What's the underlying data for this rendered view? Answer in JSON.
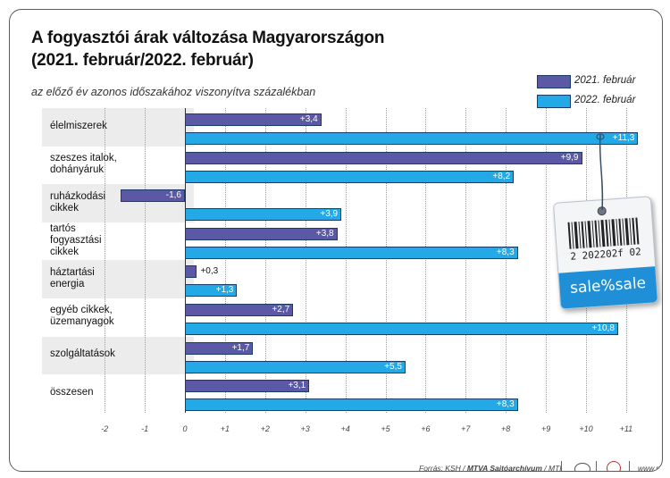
{
  "title_line1": "A fogyasztói árak változása Magyarországon",
  "title_line2": "(2021. február/2022. február)",
  "subtitle": "az előző év azonos időszakához viszonyítva százalékban",
  "colors": {
    "series_2021": "#5b58a5",
    "series_2022": "#23a9e6",
    "band": "#ececec"
  },
  "chart_data": {
    "type": "bar",
    "orientation": "horizontal",
    "title": "A fogyasztói árak változása Magyarországon (2021. február/2022. február)",
    "subtitle": "az előző év azonos időszakához viszonyítva százalékban",
    "xlim": [
      -2,
      11
    ],
    "ticks": [
      "-2",
      "-1",
      "0",
      "+1",
      "+2",
      "+3",
      "+4",
      "+5",
      "+6",
      "+7",
      "+8",
      "+9",
      "+10",
      "+11"
    ],
    "legend_position": "top-right",
    "categories": [
      "élelmiszerek",
      "szeszes italok, dohányáruk",
      "ruházkodási cikkek",
      "tartós fogyasztási cikkek",
      "háztartási energia",
      "egyéb cikkek, üzemanyagok",
      "szolgáltatások",
      "összesen"
    ],
    "category_lines": [
      [
        "élelmiszerek"
      ],
      [
        "szeszes italok,",
        "dohányáruk"
      ],
      [
        "ruházkodási",
        "cikkek"
      ],
      [
        "tartós",
        "fogyasztási",
        "cikkek"
      ],
      [
        "háztartási",
        "energia"
      ],
      [
        "egyéb cikkek,",
        "üzemanyagok"
      ],
      [
        "szolgáltatások"
      ],
      [
        "összesen"
      ]
    ],
    "series": [
      {
        "name": "2021. február",
        "values": [
          3.4,
          9.9,
          -1.6,
          3.8,
          0.3,
          2.7,
          1.7,
          3.1
        ],
        "labels": [
          "+3,4",
          "+9,9",
          "-1,6",
          "+3,8",
          "+0,3",
          "+2,7",
          "+1,7",
          "+3,1"
        ]
      },
      {
        "name": "2022. február",
        "values": [
          11.3,
          8.2,
          3.9,
          8.3,
          1.3,
          10.8,
          5.5,
          8.3
        ],
        "labels": [
          "+11,3",
          "+8,2",
          "+3,9",
          "+8,3",
          "+1,3",
          "+10,8",
          "+5,5",
          "+8,3"
        ]
      }
    ]
  },
  "price_tag": {
    "barcode_number": "2 202202f 02",
    "text": "sale%sale"
  },
  "footer": {
    "source_prefix": "Forrás: KSH / ",
    "source_bold": "MTVA Sajtóarchívum",
    "source_suffix": " / MTI",
    "website": "www.mti.hu"
  }
}
